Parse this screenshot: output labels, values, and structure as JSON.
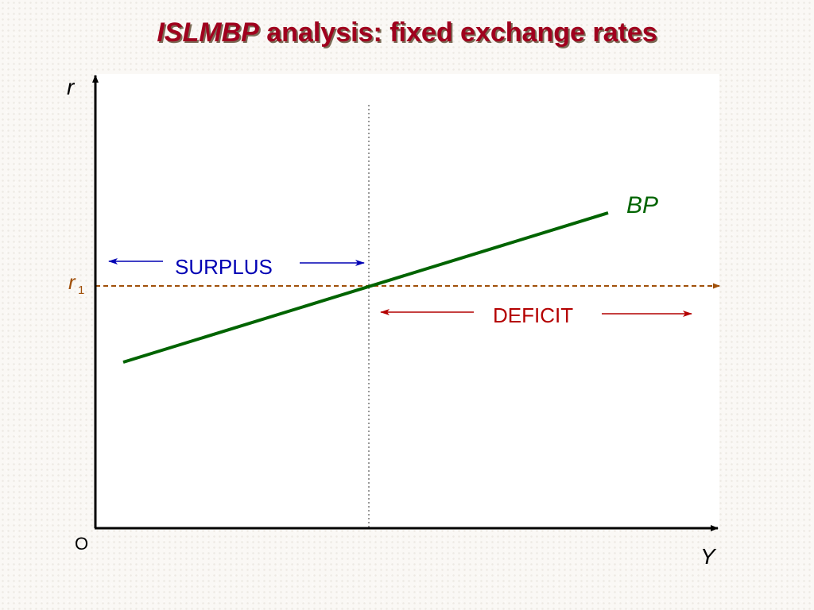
{
  "title": {
    "italic_part": "ISLMBP",
    "rest": " analysis: fixed exchange rates",
    "color": "#a0001e"
  },
  "axes": {
    "y_label": "r",
    "x_label": "Y",
    "origin_label": "O"
  },
  "r1_label": {
    "main": "r",
    "sub": "1",
    "color": "#a0500a"
  },
  "curve": {
    "label": "BP",
    "color": "#006400"
  },
  "surplus": {
    "label": "SURPLUS",
    "color": "#0000b4"
  },
  "deficit": {
    "label": "DEFICIT",
    "color": "#b40000"
  }
}
